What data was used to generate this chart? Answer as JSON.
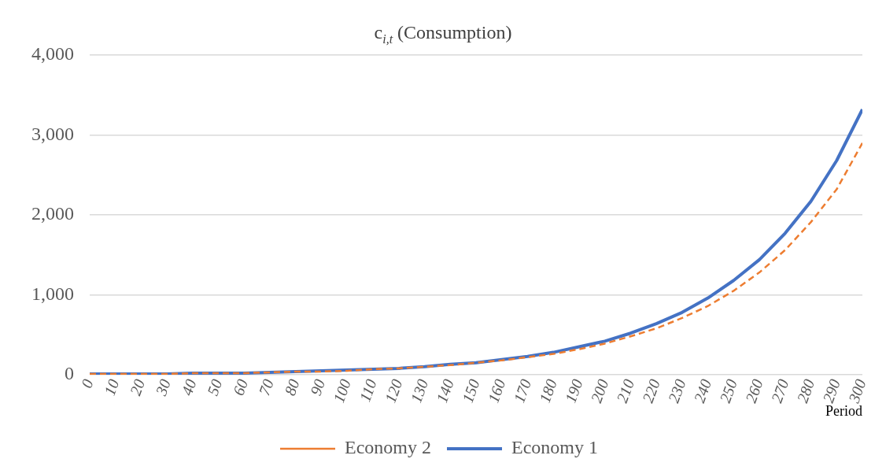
{
  "chart_data": {
    "type": "line",
    "title": "c$_{i,t}$ (Consumption)",
    "xlabel": "Period",
    "x": [
      0,
      10,
      20,
      30,
      40,
      50,
      60,
      70,
      80,
      90,
      100,
      110,
      120,
      130,
      140,
      150,
      160,
      170,
      180,
      190,
      200,
      210,
      220,
      230,
      240,
      250,
      260,
      270,
      280,
      290,
      300
    ],
    "series": [
      {
        "name": "Economy 1",
        "color": "#4472c4",
        "line_style": "solid",
        "values": [
          10,
          10,
          10,
          10,
          20,
          20,
          20,
          30,
          40,
          50,
          60,
          70,
          80,
          100,
          130,
          150,
          190,
          230,
          280,
          350,
          420,
          520,
          640,
          780,
          960,
          1180,
          1440,
          1770,
          2170,
          2680,
          3320
        ]
      },
      {
        "name": "Economy 2",
        "color": "#ed7d31",
        "line_style": "dashed",
        "values": [
          10,
          10,
          10,
          10,
          20,
          20,
          20,
          30,
          40,
          40,
          50,
          70,
          80,
          100,
          120,
          150,
          180,
          220,
          260,
          320,
          390,
          480,
          580,
          710,
          860,
          1050,
          1280,
          1560,
          1910,
          2320,
          2900
        ]
      }
    ],
    "xlim": [
      0,
      300
    ],
    "xticks": [
      0,
      10,
      20,
      30,
      40,
      50,
      60,
      70,
      80,
      90,
      100,
      110,
      120,
      130,
      140,
      150,
      160,
      170,
      180,
      190,
      200,
      210,
      220,
      230,
      240,
      250,
      260,
      270,
      280,
      290,
      300
    ],
    "ylim": [
      0,
      4000
    ],
    "yticks": [
      0,
      {
        "value": 1000,
        "label": "1,000"
      },
      {
        "value": 2000,
        "label": "2,000"
      },
      {
        "value": 3000,
        "label": "3,000"
      },
      {
        "value": 4000,
        "label": "4,000"
      }
    ],
    "grid": "y",
    "legend": "bottom",
    "marker": "none"
  }
}
